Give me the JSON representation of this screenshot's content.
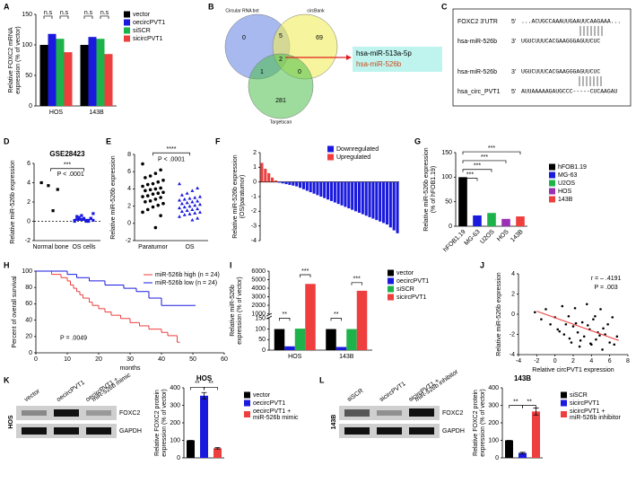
{
  "panel_labels": [
    "A",
    "B",
    "C",
    "D",
    "E",
    "F",
    "G",
    "H",
    "I",
    "J",
    "K",
    "L"
  ],
  "venn": {
    "sets": [
      "Circular RNA bot",
      "circBank",
      "Targetscan"
    ],
    "counts": [
      "0",
      "69",
      "281",
      "5",
      "1",
      "0",
      "2"
    ],
    "result": [
      "hsa-miR-513a-5p",
      "hsa-miR-526b"
    ]
  },
  "sequence": {
    "rows": [
      [
        "FOXC2 3'UTR",
        "5'",
        "...ACUGCCAAAUUGAAUUCAAGAAA..."
      ],
      [
        "hsa-miR-526b",
        "3'",
        "UGUCUUUCACGAAGGGAGUUCUC"
      ],
      [
        "hsa-miR-526b",
        "3'",
        "UGUCUUUCACGAAGGGAGUUCUC"
      ],
      [
        "hsa_circ_PVT1",
        "5'",
        "AUUAAAAAGAUGCCC-----CUCAAGAU"
      ]
    ]
  },
  "blots": [
    {
      "cell": "HOS",
      "lanes": [
        [
          "vector"
        ],
        [
          "oecircPVT1"
        ],
        [
          "oecircPVT1 +",
          "miR-526b mimic"
        ]
      ],
      "proteins": [
        "FOXC2",
        "GAPDH"
      ]
    },
    {
      "cell": "143B",
      "lanes": [
        [
          "siSCR"
        ],
        [
          "sicircPVT1"
        ],
        [
          "sicircPVT1 +",
          "miR-526b inhibitor"
        ]
      ],
      "proteins": [
        "FOXC2",
        "GAPDH"
      ]
    }
  ],
  "chart_data": [
    {
      "type": "bar",
      "ylabel": [
        "Relative FOXC2 mRNA",
        "expression (% of vector)"
      ],
      "categories": [
        "HOS",
        "143B"
      ],
      "series": [
        {
          "name": "vector",
          "color": "#000000",
          "values": [
            100,
            100
          ]
        },
        {
          "name": "oecircPVT1",
          "color": "#1a1adf",
          "values": [
            118,
            113
          ]
        },
        {
          "name": "siSCR",
          "color": "#1db34a",
          "values": [
            110,
            110
          ]
        },
        {
          "name": "sicircPVT1",
          "color": "#ee3e3e",
          "values": [
            88,
            85
          ]
        }
      ],
      "ylim": [
        0,
        150
      ],
      "yticks": [
        0,
        50,
        100,
        150
      ],
      "legend": true,
      "annotations": [
        "n.s",
        "n.s",
        "n.s",
        "n.s"
      ]
    },
    {
      "type": "strip",
      "title": "GSE28423",
      "ylabel": "Relative miR-526b expression",
      "categories": [
        "Normal bone",
        "OS cells"
      ],
      "values": [
        [
          4.0,
          3.3,
          1.1,
          3.7
        ],
        [
          0.1,
          0.3,
          0.0,
          0.2,
          0.5,
          0.8,
          0.1,
          0.2,
          0.4,
          0.0,
          0.3,
          0.1,
          0.6,
          0.2,
          0.1,
          0.0,
          0.3,
          0.2
        ]
      ],
      "colors": [
        "#000000",
        "#1a1adf"
      ],
      "markers": [
        "square",
        "square"
      ],
      "zeroline": true,
      "ylim": [
        -2,
        6
      ],
      "yticks": [
        -2,
        0,
        2,
        4,
        6
      ],
      "annotations": [
        "***",
        "P < .0001"
      ]
    },
    {
      "type": "strip",
      "ylabel": "Relative miR-526b expression",
      "categories": [
        "Paratumor",
        "OS"
      ],
      "values": [
        [
          6.9,
          6.2,
          5.8,
          5.5,
          5.3,
          5.0,
          4.8,
          4.6,
          4.5,
          4.3,
          4.1,
          4.0,
          3.9,
          3.8,
          3.6,
          3.5,
          3.4,
          3.2,
          3.1,
          3.0,
          2.8,
          2.6,
          2.5,
          2.3,
          2.1,
          1.9,
          1.6,
          1.3,
          0.9,
          -0.5
        ],
        [
          4.6,
          4.1,
          3.8,
          3.5,
          3.3,
          3.1,
          3.0,
          2.9,
          2.8,
          2.7,
          2.6,
          2.5,
          2.4,
          2.3,
          2.2,
          2.1,
          2.0,
          1.9,
          1.8,
          1.7,
          1.6,
          1.5,
          1.4,
          1.3,
          1.2,
          1.1,
          1.0,
          0.8,
          0.6,
          0.4
        ]
      ],
      "colors": [
        "#000000",
        "#1a1adf"
      ],
      "markers": [
        "circle",
        "triangle"
      ],
      "ylim": [
        -2,
        8
      ],
      "yticks": [
        -2,
        0,
        2,
        4,
        6,
        8
      ],
      "annotations": [
        "****",
        "P < .0001"
      ]
    },
    {
      "type": "bar",
      "barmode": "overlay",
      "ylabel": [
        "Relative miR-526b expression",
        "(OS/paratumor)"
      ],
      "series": [
        {
          "name": "Downregulated",
          "color": "#1a1adf",
          "values": [
            null,
            null,
            null,
            null,
            null,
            -0.05,
            -0.1,
            -0.15,
            -0.2,
            -0.25,
            -0.3,
            -0.4,
            -0.5,
            -0.6,
            -0.7,
            -0.8,
            -0.9,
            -1.0,
            -1.1,
            -1.2,
            -1.3,
            -1.4,
            -1.5,
            -1.6,
            -1.7,
            -1.8,
            -1.9,
            -2.0,
            -2.1,
            -2.2,
            -2.3,
            -2.4,
            -2.5,
            -2.6,
            -2.7,
            -2.8,
            -2.9,
            -3.1,
            -3.3,
            -3.5
          ]
        },
        {
          "name": "Upregulated",
          "color": "#ee3e3e",
          "values": [
            1.3,
            0.9,
            0.6,
            0.3,
            0.1,
            null,
            null,
            null,
            null,
            null,
            null,
            null,
            null,
            null,
            null,
            null,
            null,
            null,
            null,
            null,
            null,
            null,
            null,
            null,
            null,
            null,
            null,
            null,
            null,
            null,
            null,
            null,
            null,
            null,
            null,
            null,
            null,
            null,
            null,
            null
          ]
        }
      ],
      "ylim": [
        -4,
        2
      ],
      "yticks": [
        -4,
        -3,
        -2,
        -1,
        0,
        1,
        2
      ],
      "legend": true
    },
    {
      "type": "bar",
      "ylabel": [
        "Relative miR-526b expression",
        "(% of hFOB1.19)"
      ],
      "categories": [
        "hFOB1.19",
        "MG-63",
        "U2OS",
        "HOS",
        "143B"
      ],
      "values": [
        100,
        22,
        27,
        15,
        20
      ],
      "colors": [
        "#000000",
        "#1a1adf",
        "#1db34a",
        "#9b30b5",
        "#ee3e3e"
      ],
      "xtick_rotation": 45,
      "ylim": [
        0,
        150
      ],
      "yticks": [
        0,
        50,
        100,
        150
      ],
      "legend": true,
      "annotations": [
        "***",
        "***",
        "***",
        "***"
      ]
    },
    {
      "type": "step",
      "xlabel": "months",
      "ylabel": "Percent of overall survival",
      "series": [
        {
          "name": "miR-526b high (n = 24)",
          "color": "#ee3e3e",
          "x": [
            0,
            5,
            8,
            10,
            11,
            12,
            13,
            14,
            15,
            17,
            18,
            20,
            22,
            24,
            27,
            30,
            33,
            36,
            40,
            42,
            45
          ],
          "values": [
            100,
            96,
            92,
            88,
            83,
            79,
            75,
            71,
            67,
            62,
            58,
            54,
            50,
            46,
            42,
            37,
            33,
            29,
            25,
            21,
            13
          ]
        },
        {
          "name": "miR-526b low (n = 24)",
          "color": "#1a1adf",
          "x": [
            0,
            10,
            13,
            17,
            22,
            28,
            32,
            36,
            40,
            50
          ],
          "values": [
            100,
            96,
            92,
            88,
            83,
            79,
            75,
            67,
            58,
            58
          ]
        }
      ],
      "xlim": [
        0,
        60
      ],
      "xticks": [
        0,
        10,
        20,
        30,
        40,
        50,
        60
      ],
      "ylim": [
        0,
        100
      ],
      "yticks": [
        0,
        20,
        40,
        60,
        80,
        100
      ],
      "legend": true,
      "annotations": [
        "P = .0049"
      ]
    },
    {
      "type": "bar",
      "ylabel": [
        "Relative miR-526b",
        "expression (% of vector)"
      ],
      "categories": [
        "HOS",
        "143B"
      ],
      "series": [
        {
          "name": "vector",
          "color": "#000000",
          "values": [
            100,
            100
          ]
        },
        {
          "name": "oecircPVT1",
          "color": "#1a1adf",
          "values": [
            18,
            15
          ]
        },
        {
          "name": "siSCR",
          "color": "#1db34a",
          "values": [
            102,
            100
          ]
        },
        {
          "name": "sicircPVT1",
          "color": "#ee3e3e",
          "values": [
            4500,
            3700
          ]
        }
      ],
      "ylim": [
        0,
        6000
      ],
      "ybreak": [
        150,
        1000
      ],
      "yticks": [
        0,
        50,
        100,
        150,
        1000,
        2000,
        3000,
        4000,
        5000,
        6000
      ],
      "legend": true,
      "annotations": [
        "**",
        "***",
        "**",
        "***"
      ]
    },
    {
      "type": "scatter",
      "xlabel": "Relative circPVT1 expression",
      "ylabel": "Relative miR-526b expression",
      "x": [
        -2.2,
        -1.5,
        -1.0,
        -0.5,
        0,
        0.3,
        0.8,
        1.0,
        1.2,
        1.5,
        1.8,
        2.0,
        2.2,
        2.5,
        2.7,
        3.0,
        3.2,
        3.5,
        3.8,
        4.0,
        4.2,
        4.5,
        4.7,
        5.0,
        5.2,
        5.5,
        5.8,
        6.0,
        6.3,
        6.5,
        2.8,
        3.6,
        4.4,
        5.3,
        1.6,
        6.8,
        0.5,
        3.9,
        4.9,
        2.3
      ],
      "values": [
        0.2,
        -0.5,
        0.5,
        -1.0,
        -0.3,
        -1.5,
        0.8,
        -2.0,
        -1.0,
        -0.2,
        -2.8,
        -1.2,
        0.6,
        -1.8,
        -3.2,
        -0.8,
        -2.2,
        1.0,
        -1.5,
        -3.0,
        -0.5,
        -2.5,
        -1.8,
        0.5,
        -3.5,
        -2.0,
        -1.0,
        -2.8,
        -0.3,
        -3.0,
        -2.6,
        -1.1,
        -0.2,
        -1.4,
        -2.4,
        -2.2,
        -1.7,
        -2.9,
        -2.1,
        -0.9
      ],
      "color": "#000000",
      "trendline": {
        "color": "#ee3e3e",
        "x": [
          -2,
          7
        ],
        "y": [
          0.3,
          -2.6
        ]
      },
      "xlim": [
        -4,
        8
      ],
      "xticks": [
        -4,
        -2,
        0,
        2,
        4,
        6,
        8
      ],
      "ylim": [
        -4,
        4
      ],
      "yticks": [
        -4,
        -2,
        0,
        2,
        4
      ],
      "annotations": [
        "r = – .4191",
        "P = .003"
      ]
    },
    {
      "type": "bar",
      "title": "HOS",
      "ylabel": [
        "Relative FOXC2 protein",
        "expression (% of vector)"
      ],
      "categories": [
        [
          "vector"
        ],
        [
          "oecircPVT1"
        ],
        [
          "oecircPVT1 +",
          "miR-526b mimic"
        ]
      ],
      "values": [
        100,
        355,
        55
      ],
      "errors": [
        0,
        18,
        4
      ],
      "colors": [
        "#000000",
        "#1a1adf",
        "#ee3e3e"
      ],
      "xticklabels": false,
      "ylim": [
        0,
        400
      ],
      "yticks": [
        0,
        100,
        200,
        300,
        400
      ],
      "legend": true,
      "annotations": [
        "**",
        "**"
      ]
    },
    {
      "type": "bar",
      "title": "143B",
      "ylabel": [
        "Relative FOXC2 protein",
        "expression (% of vector)"
      ],
      "categories": [
        [
          "siSCR"
        ],
        [
          "sicircPVT1"
        ],
        [
          "sicircPVT1 +",
          "miR-526b inhibitor"
        ]
      ],
      "values": [
        100,
        28,
        265
      ],
      "errors": [
        0,
        4,
        20
      ],
      "colors": [
        "#000000",
        "#1a1adf",
        "#ee3e3e"
      ],
      "xticklabels": false,
      "ylim": [
        0,
        400
      ],
      "yticks": [
        0,
        100,
        200,
        300,
        400
      ],
      "legend": true,
      "annotations": [
        "**",
        "**"
      ]
    }
  ]
}
